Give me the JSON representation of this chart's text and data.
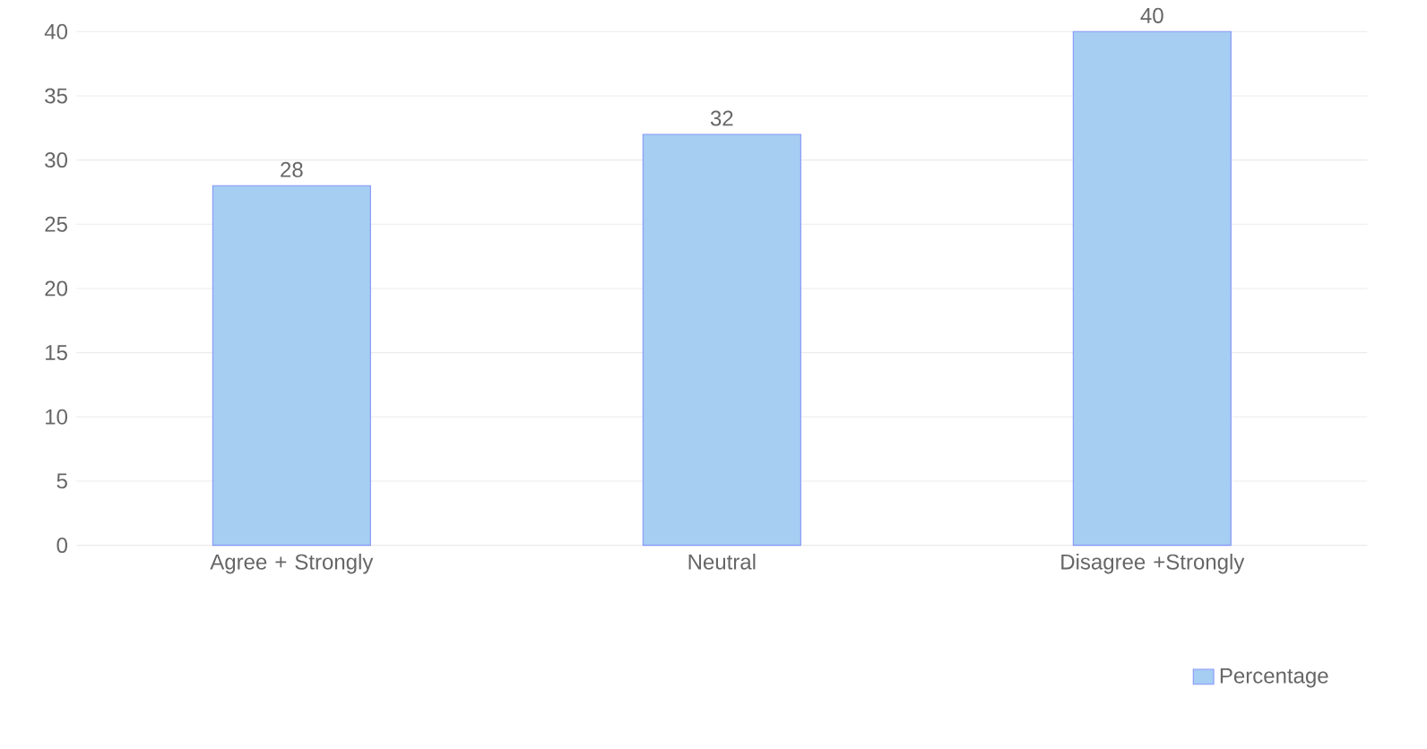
{
  "chart_data": {
    "type": "bar",
    "categories": [
      "Agree + Strongly",
      "Neutral",
      "Disagree +Strongly"
    ],
    "series": [
      {
        "name": "Percentage",
        "color": "#a6cdf2",
        "values": [
          28,
          32,
          40
        ]
      }
    ],
    "ylim": [
      0,
      40
    ],
    "yticks": [
      0,
      5,
      10,
      15,
      20,
      25,
      30,
      35,
      40
    ],
    "grid": "y",
    "legend": "bottom right",
    "data_labels": true
  }
}
